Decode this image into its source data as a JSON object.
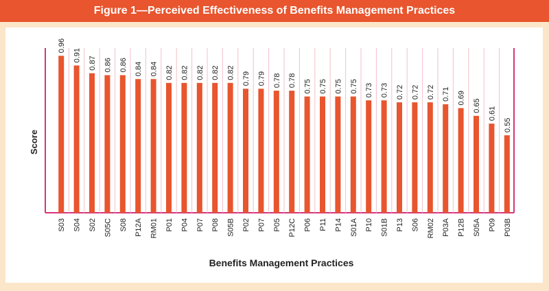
{
  "figure": {
    "title": "Figure 1—Perceived Effectiveness of Benefits Management Practices"
  },
  "colors": {
    "title_bar": "#e8552e",
    "bar": "#e8552e",
    "frame_border": "#d6337a",
    "background": "#fbe6c9"
  },
  "chart_data": {
    "type": "bar",
    "title": "Figure 1—Perceived Effectiveness of Benefits Management Practices",
    "xlabel": "Benefits Management Practices",
    "ylabel": "Score",
    "ylim": [
      0.15,
      1.0
    ],
    "grid": false,
    "categories": [
      "S03",
      "S04",
      "S02",
      "S05C",
      "S08",
      "P12A",
      "RM01",
      "P01",
      "P04",
      "P07",
      "P08",
      "S05B",
      "P02",
      "P07",
      "P05",
      "P12C",
      "P06",
      "P11",
      "P14",
      "S01A",
      "P10",
      "S01B",
      "P13",
      "S06",
      "RM02",
      "P03A",
      "P12B",
      "S05A",
      "P09",
      "P03B"
    ],
    "values": [
      0.96,
      0.91,
      0.87,
      0.86,
      0.86,
      0.84,
      0.84,
      0.82,
      0.82,
      0.82,
      0.82,
      0.82,
      0.79,
      0.79,
      0.78,
      0.78,
      0.75,
      0.75,
      0.75,
      0.75,
      0.73,
      0.73,
      0.72,
      0.72,
      0.72,
      0.71,
      0.69,
      0.65,
      0.61,
      0.55
    ],
    "value_labels": [
      "0.96",
      "0.91",
      "0.87",
      "0.86",
      "0.86",
      "0.84",
      "0.84",
      "0.82",
      "0.82",
      "0.82",
      "0.82",
      "0.82",
      "0.79",
      "0.79",
      "0.78",
      "0.78",
      "0.75",
      "0.75",
      "0.75",
      "0.75",
      "0.73",
      "0.73",
      "0.72",
      "0.72",
      "0.72",
      "0.71",
      "0.69",
      "0.65",
      "0.61",
      "0.55"
    ]
  }
}
